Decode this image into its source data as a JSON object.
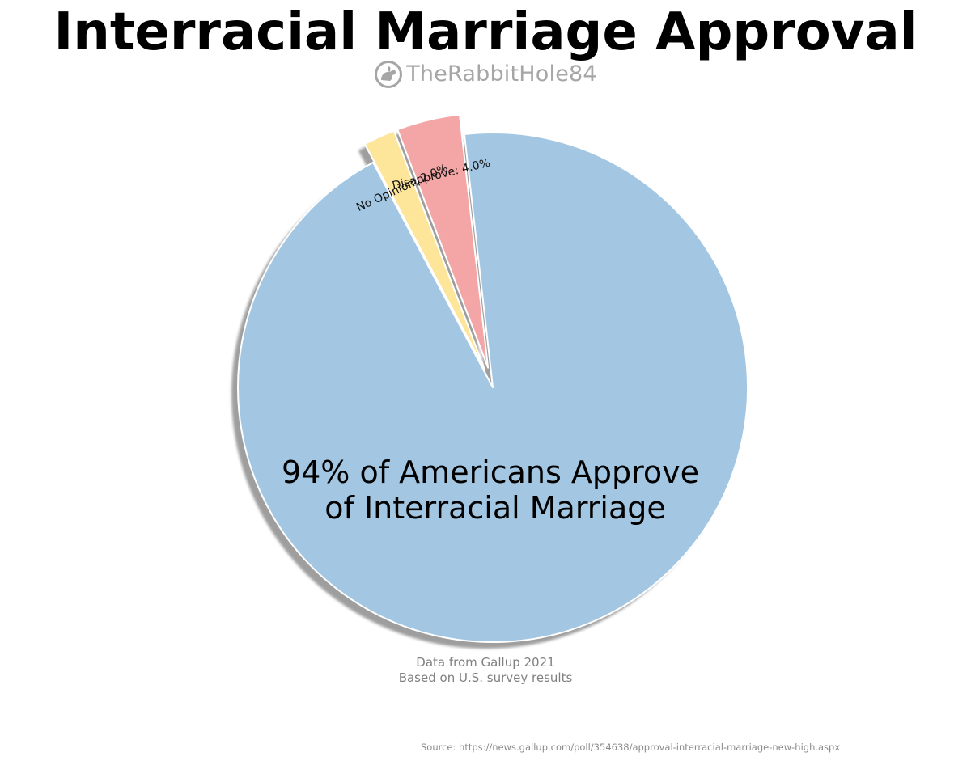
{
  "header": {
    "title": "Interracial Marriage Approval",
    "watermark": "TheRabbitHole84",
    "watermark_icon": "rabbit-logo-icon"
  },
  "chart_data": {
    "type": "pie",
    "title": "Interracial Marriage Approval",
    "slices": [
      {
        "label": "Approve",
        "value": 94.0,
        "color": "#a3c7e2",
        "display_label": ""
      },
      {
        "label": "Disapprove",
        "value": 4.0,
        "color": "#f4a6a6",
        "display_label": "Disapprove: 4.0%",
        "exploded": true
      },
      {
        "label": "No Opinion",
        "value": 2.0,
        "color": "#fde59a",
        "display_label": "No Opinion: 2.0%",
        "exploded": true
      }
    ],
    "shadow": true,
    "center_annotation": [
      "94% of Americans Approve",
      "of Interracial Marriage"
    ],
    "legend": "none"
  },
  "footer": {
    "note_line1": "Data from Gallup 2021",
    "note_line2": "Based on U.S. survey results",
    "source": "Source: https://news.gallup.com/poll/354638/approval-interracial-marriage-new-high.aspx"
  }
}
